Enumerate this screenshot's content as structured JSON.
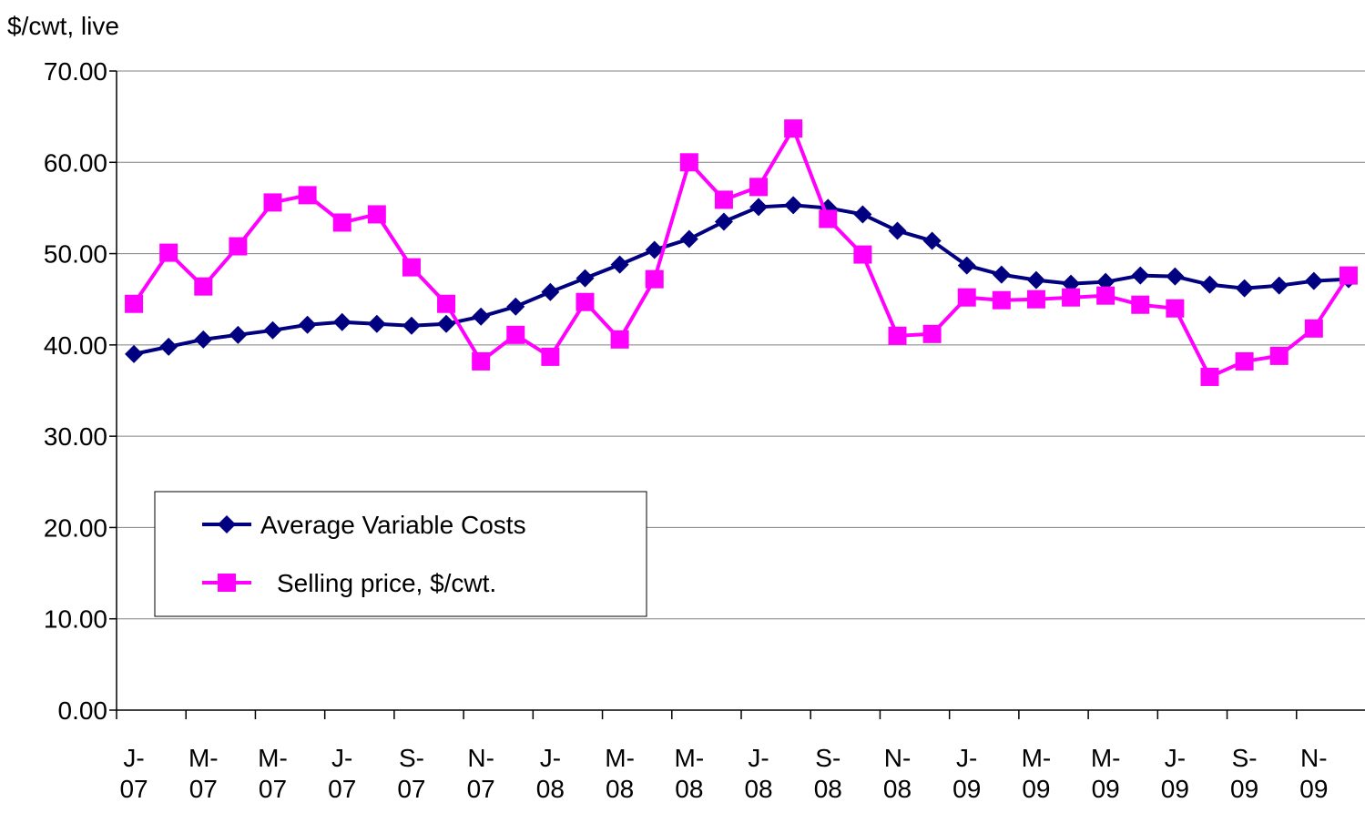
{
  "chart_data": {
    "type": "line",
    "y_label": "$/cwt, live",
    "categories": [
      "J-07",
      null,
      "M-07",
      null,
      "M-07",
      null,
      "J-07",
      null,
      "S-07",
      null,
      "N-07",
      null,
      "J-08",
      null,
      "M-08",
      null,
      "M-08",
      null,
      "J-08",
      null,
      "S-08",
      null,
      "N-08",
      null,
      "J-09",
      null,
      "M-09",
      null,
      "M-09",
      null,
      "J-09",
      null,
      "S-09",
      null,
      "N-09",
      null
    ],
    "series": [
      {
        "name": "Average Variable Costs",
        "color": "#000080",
        "marker": "diamond",
        "values": [
          39.0,
          39.8,
          40.6,
          41.1,
          41.6,
          42.2,
          42.5,
          42.3,
          42.1,
          42.3,
          43.1,
          44.2,
          45.8,
          47.3,
          48.8,
          50.4,
          51.6,
          53.5,
          55.1,
          55.3,
          55.0,
          54.3,
          52.5,
          51.4,
          48.7,
          47.7,
          47.1,
          46.7,
          46.9,
          47.6,
          47.5,
          46.6,
          46.2,
          46.5,
          47.0,
          47.2
        ]
      },
      {
        "name": "Selling price, $/cwt.",
        "color": "#ff00ff",
        "marker": "square",
        "values": [
          44.5,
          50.1,
          46.4,
          50.8,
          55.6,
          56.4,
          53.4,
          54.3,
          48.5,
          44.5,
          38.2,
          41.1,
          38.7,
          44.7,
          40.6,
          47.2,
          60.0,
          55.9,
          57.3,
          63.7,
          53.8,
          49.9,
          41.0,
          41.2,
          45.2,
          44.9,
          45.0,
          45.2,
          45.4,
          44.4,
          44.0,
          36.5,
          38.2,
          38.8,
          41.8,
          47.6
        ]
      }
    ],
    "ylim": [
      0,
      70
    ],
    "yticks": [
      {
        "value": 0,
        "label": "0.00"
      },
      {
        "value": 10,
        "label": "10.00"
      },
      {
        "value": 20,
        "label": "20.00"
      },
      {
        "value": 30,
        "label": "30.00"
      },
      {
        "value": 40,
        "label": "40.00"
      },
      {
        "value": 50,
        "label": "50.00"
      },
      {
        "value": 60,
        "label": "60.00"
      },
      {
        "value": 70,
        "label": "70.00"
      }
    ],
    "grid": true
  }
}
